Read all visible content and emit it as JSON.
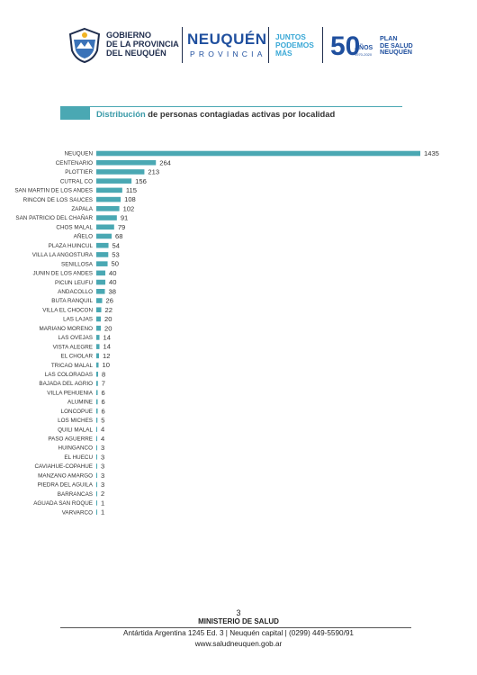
{
  "header": {
    "gob_line1": "GOBIERNO",
    "gob_line2": "DE LA PROVINCIA",
    "gob_line3": "DEL NEUQUÉN",
    "brand_name": "NEUQUÉN",
    "brand_sub": "PROVINCIA",
    "slogan_line1": "JUNTOS",
    "slogan_line2": "PODEMOS",
    "slogan_line3": "MÁS",
    "anniv_number": "50",
    "anniv_word": "AÑOS",
    "anniv_years": "1970-2020",
    "plan_line1": "PLAN",
    "plan_line2": "DE SALUD",
    "plan_line3": "NEUQUÉN",
    "colors": {
      "navy": "#1f2d4d",
      "blue": "#1f4f9e",
      "light_blue": "#3aa8d6"
    }
  },
  "title": {
    "highlight": "Distribución",
    "rest": " de personas contagiadas activas por localidad"
  },
  "chart_data": {
    "type": "bar",
    "orientation": "horizontal",
    "title": "Distribución de personas contagiadas activas por localidad",
    "xlabel": "",
    "ylabel": "",
    "grid": false,
    "bar_color": "#4aa8b3",
    "categories": [
      "NEUQUEN",
      "CENTENARIO",
      "PLOTTIER",
      "CUTRAL CO",
      "SAN MARTIN DE LOS ANDES",
      "RINCON DE LOS SAUCES",
      "ZAPALA",
      "SAN PATRICIO DEL CHAÑAR",
      "CHOS MALAL",
      "AÑELO",
      "PLAZA HUINCUL",
      "VILLA LA ANGOSTURA",
      "SENILLOSA",
      "JUNIN DE LOS ANDES",
      "PICUN LEUFU",
      "ANDACOLLO",
      "BUTA RANQUIL",
      "VILLA EL CHOCON",
      "LAS LAJAS",
      "MARIANO MORENO",
      "LAS OVEJAS",
      "VISTA ALEGRE",
      "EL CHOLAR",
      "TRICAO MALAL",
      "LAS COLORADAS",
      "BAJADA DEL AGRIO",
      "VILLA PEHUENIA",
      "ALUMINE",
      "LONCOPUE",
      "LOS MICHES",
      "QUILI MALAL",
      "PASO AGUERRE",
      "HUINGANCO",
      "EL HUECU",
      "CAVIAHUE-COPAHUE",
      "MANZANO AMARGO",
      "PIEDRA DEL AGUILA",
      "BARRANCAS",
      "AGUADA SAN ROQUE",
      "VARVARCO"
    ],
    "values": [
      1435,
      264,
      213,
      156,
      115,
      108,
      102,
      91,
      79,
      68,
      54,
      53,
      50,
      40,
      40,
      38,
      26,
      22,
      20,
      20,
      14,
      14,
      12,
      10,
      8,
      7,
      6,
      6,
      6,
      5,
      4,
      4,
      3,
      3,
      3,
      3,
      3,
      2,
      1,
      1
    ],
    "xlim": [
      0,
      1435
    ]
  },
  "footer": {
    "page_number": "3",
    "ministry": "MINISTERIO DE SALUD",
    "address": "Antártida Argentina 1245 Ed. 3 | Neuquén capital | (0299) 449-5590/91",
    "website": "www.saludneuquen.gob.ar"
  }
}
